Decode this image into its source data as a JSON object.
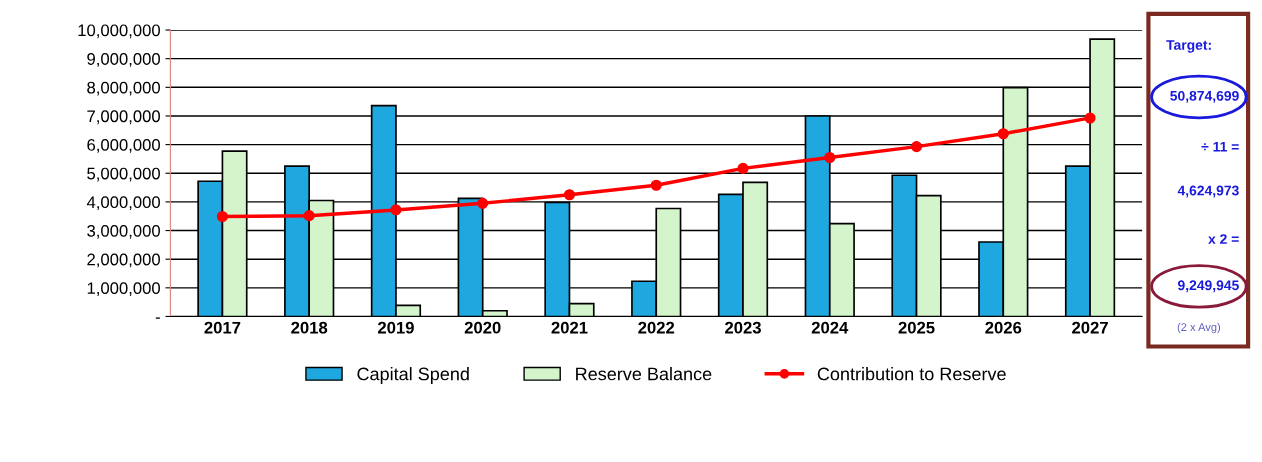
{
  "chart_data": {
    "type": "bar",
    "categories": [
      "2017",
      "2018",
      "2019",
      "2020",
      "2021",
      "2022",
      "2023",
      "2024",
      "2025",
      "2026",
      "2027"
    ],
    "series": [
      {
        "name": "Capital Spend",
        "color": "#1fa8e0",
        "values": [
          4720000,
          5250000,
          7360000,
          4120000,
          3980000,
          1230000,
          4260000,
          7000000,
          4930000,
          2600000,
          5250000
        ]
      },
      {
        "name": "Reserve Balance",
        "color": "#d4f5cc",
        "values": [
          5770000,
          4050000,
          390000,
          200000,
          450000,
          3770000,
          4680000,
          3240000,
          4220000,
          7990000,
          9680000
        ]
      },
      {
        "name": "Contribution to Reserve",
        "type": "line",
        "color": "#ff0000",
        "marker": "circle",
        "values": [
          3490000,
          3520000,
          3720000,
          3950000,
          4250000,
          4580000,
          5170000,
          5550000,
          5930000,
          6380000,
          6930000
        ]
      }
    ],
    "ylim": [
      0,
      10000000
    ],
    "yticks": [
      {
        "value": 0,
        "label": "-"
      },
      {
        "value": 1000000,
        "label": "1,000,000"
      },
      {
        "value": 2000000,
        "label": "2,000,000"
      },
      {
        "value": 3000000,
        "label": "3,000,000"
      },
      {
        "value": 4000000,
        "label": "4,000,000"
      },
      {
        "value": 5000000,
        "label": "5,000,000"
      },
      {
        "value": 6000000,
        "label": "6,000,000"
      },
      {
        "value": 7000000,
        "label": "7,000,000"
      },
      {
        "value": 8000000,
        "label": "8,000,000"
      },
      {
        "value": 9000000,
        "label": "9,000,000"
      },
      {
        "value": 10000000,
        "label": "10,000,000"
      }
    ],
    "grid": "y",
    "legend": "bottom",
    "annotations": [
      "Target:",
      "50,874,699",
      "÷ 11 =",
      "4,624,973",
      "x 2 =",
      "9,249,945",
      "(2 x Avg)"
    ]
  }
}
